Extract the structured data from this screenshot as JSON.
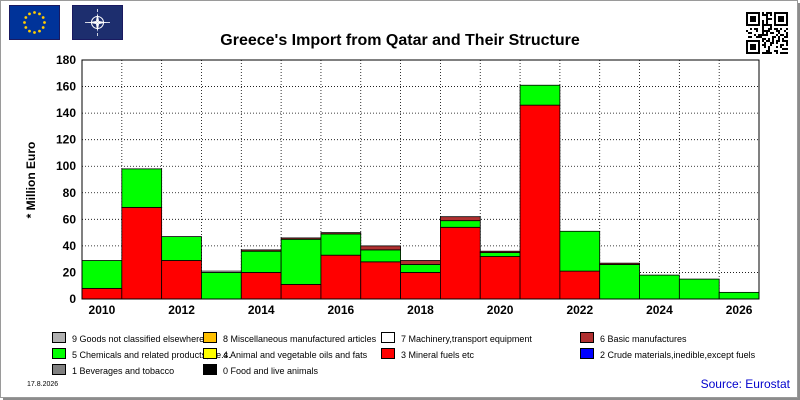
{
  "header": {
    "eu_flag_icon": "eu-flag-icon",
    "nato_flag_icon": "nato-flag-icon",
    "qr_icon": "qr-code-icon"
  },
  "footer": {
    "date": "17.8.2026",
    "source": "Source: Eurostat"
  },
  "colors": {
    "sitc9": "#b0b0b0",
    "sitc8": "#ffc000",
    "sitc7": "#ffffff",
    "sitc6": "#b03030",
    "sitc5": "#00ff00",
    "sitc4": "#ffff00",
    "sitc3": "#ff0000",
    "sitc2": "#0000ff",
    "sitc1": "#808080",
    "sitc0": "#000000",
    "plot_bg": "#ffffff",
    "source_text": "#0000cc"
  },
  "chart_data": {
    "type": "bar",
    "stacked": true,
    "title": "Greece's Import from Qatar and Their Structure",
    "ylabel": "* Million Euro",
    "xlabel": "",
    "ylim": [
      0,
      180
    ],
    "yticks": [
      0,
      20,
      40,
      60,
      80,
      100,
      120,
      140,
      160,
      180
    ],
    "xlim": [
      2010,
      2027
    ],
    "xtick_labels": [
      "2010",
      "2012",
      "2014",
      "2016",
      "2018",
      "2020",
      "2022",
      "2024",
      "2026"
    ],
    "grid": true,
    "legend_position": "bottom",
    "categories": [
      2010,
      2011,
      2012,
      2013,
      2014,
      2015,
      2016,
      2017,
      2018,
      2019,
      2020,
      2021,
      2022,
      2023,
      2024,
      2025,
      2026
    ],
    "series": [
      {
        "name": "0 Food and live animals",
        "key": "sitc0",
        "values": [
          0,
          0,
          0,
          0,
          0,
          0,
          0,
          0,
          0,
          0,
          0,
          0,
          0,
          0,
          0,
          0,
          0
        ]
      },
      {
        "name": "1 Beverages and tobacco",
        "key": "sitc1",
        "values": [
          0,
          0,
          0,
          0,
          0,
          0,
          0,
          0,
          0,
          0,
          0,
          0,
          0,
          0,
          0,
          0,
          0
        ]
      },
      {
        "name": "2 Crude materials,inedible,except fuels",
        "key": "sitc2",
        "values": [
          0,
          0,
          0,
          0,
          0,
          0,
          0,
          0,
          0,
          0,
          0,
          0,
          0,
          0,
          0,
          0,
          0
        ]
      },
      {
        "name": "3 Mineral fuels etc",
        "key": "sitc3",
        "values": [
          8,
          69,
          29,
          0,
          20,
          11,
          33,
          28,
          20,
          54,
          32,
          146,
          21,
          0,
          0,
          0,
          0
        ]
      },
      {
        "name": "4 Animal and vegetable oils and fats",
        "key": "sitc4",
        "values": [
          0,
          0,
          0,
          0,
          0,
          0,
          0,
          0,
          0,
          0,
          0,
          0,
          0,
          0,
          0,
          0,
          0
        ]
      },
      {
        "name": "5 Chemicals and related products,n.e.s.",
        "key": "sitc5",
        "values": [
          21,
          29,
          18,
          20,
          16,
          34,
          16,
          9,
          6,
          5,
          3,
          15,
          30,
          26,
          18,
          15,
          5
        ]
      },
      {
        "name": "6 Basic manufactures",
        "key": "sitc6",
        "values": [
          0,
          0,
          0,
          0,
          1,
          1,
          1,
          3,
          3,
          3,
          1,
          0,
          0,
          1,
          0,
          0,
          0
        ]
      },
      {
        "name": "7 Machinery,transport equipment",
        "key": "sitc7",
        "values": [
          0,
          0,
          0,
          1,
          0,
          0,
          0,
          0,
          0,
          0,
          0,
          0,
          0,
          0,
          0,
          0,
          0
        ]
      },
      {
        "name": "8 Miscellaneous manufactured articles",
        "key": "sitc8",
        "values": [
          0,
          0,
          0,
          0,
          0,
          0,
          0,
          0,
          0,
          0,
          0,
          0,
          0,
          0,
          0,
          0,
          0
        ]
      },
      {
        "name": "9 Goods not classified elsewhere",
        "key": "sitc9",
        "values": [
          0,
          0,
          0,
          0,
          0,
          0,
          0,
          0,
          0,
          0,
          0,
          0,
          0,
          0,
          0,
          0,
          0
        ]
      }
    ],
    "legend": [
      {
        "label": "9 Goods not classified elsewhere",
        "key": "sitc9"
      },
      {
        "label": "8 Miscellaneous manufactured articles",
        "key": "sitc8"
      },
      {
        "label": "7 Machinery,transport equipment",
        "key": "sitc7"
      },
      {
        "label": "6 Basic manufactures",
        "key": "sitc6"
      },
      {
        "label": "5 Chemicals and related products,n.e.s.",
        "key": "sitc5"
      },
      {
        "label": "4 Animal and vegetable oils and fats",
        "key": "sitc4"
      },
      {
        "label": "3 Mineral fuels etc",
        "key": "sitc3"
      },
      {
        "label": "2 Crude materials,inedible,except fuels",
        "key": "sitc2"
      },
      {
        "label": "1 Beverages and tobacco",
        "key": "sitc1"
      },
      {
        "label": "0 Food and live animals",
        "key": "sitc0"
      }
    ]
  }
}
